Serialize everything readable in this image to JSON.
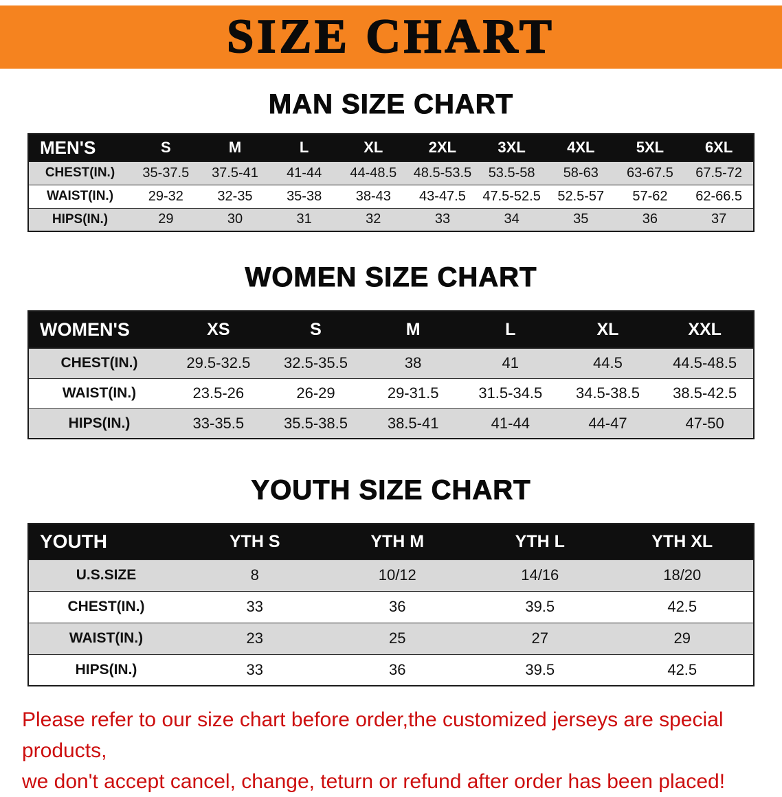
{
  "banner": {
    "title": "SIZE CHART",
    "background_color": "#f5831f",
    "text_color": "#0a0a0a"
  },
  "chart_data": [
    {
      "type": "table",
      "title": "MAN SIZE CHART",
      "columns": [
        "MEN'S",
        "S",
        "M",
        "L",
        "XL",
        "2XL",
        "3XL",
        "4XL",
        "5XL",
        "6XL"
      ],
      "rows": [
        [
          "CHEST(IN.)",
          "35-37.5",
          "37.5-41",
          "41-44",
          "44-48.5",
          "48.5-53.5",
          "53.5-58",
          "58-63",
          "63-67.5",
          "67.5-72"
        ],
        [
          "WAIST(IN.)",
          "29-32",
          "32-35",
          "35-38",
          "38-43",
          "43-47.5",
          "47.5-52.5",
          "52.5-57",
          "57-62",
          "62-66.5"
        ],
        [
          "HIPS(IN.)",
          "29",
          "30",
          "31",
          "32",
          "33",
          "34",
          "35",
          "36",
          "37"
        ]
      ]
    },
    {
      "type": "table",
      "title": "WOMEN SIZE CHART",
      "columns": [
        "WOMEN'S",
        "XS",
        "S",
        "M",
        "L",
        "XL",
        "XXL"
      ],
      "rows": [
        [
          "CHEST(IN.)",
          "29.5-32.5",
          "32.5-35.5",
          "38",
          "41",
          "44.5",
          "44.5-48.5"
        ],
        [
          "WAIST(IN.)",
          "23.5-26",
          "26-29",
          "29-31.5",
          "31.5-34.5",
          "34.5-38.5",
          "38.5-42.5"
        ],
        [
          "HIPS(IN.)",
          "33-35.5",
          "35.5-38.5",
          "38.5-41",
          "41-44",
          "44-47",
          "47-50"
        ]
      ]
    },
    {
      "type": "table",
      "title": "YOUTH SIZE CHART",
      "columns": [
        "YOUTH",
        "YTH S",
        "YTH M",
        "YTH L",
        "YTH XL"
      ],
      "rows": [
        [
          "U.S.SIZE",
          "8",
          "10/12",
          "14/16",
          "18/20"
        ],
        [
          "CHEST(IN.)",
          "33",
          "36",
          "39.5",
          "42.5"
        ],
        [
          "WAIST(IN.)",
          "23",
          "25",
          "27",
          "29"
        ],
        [
          "HIPS(IN.)",
          "33",
          "36",
          "39.5",
          "42.5"
        ]
      ]
    }
  ],
  "footer": {
    "line1": "Please refer to our size chart before order,the customized jerseys are special products,",
    "line2": "we don't accept cancel, change, teturn or refund after order has been placed!",
    "text_color": "#cd0f0f",
    "row_stripe_color": "#d9d9d9",
    "header_bar_color": "#0f0f0f"
  }
}
